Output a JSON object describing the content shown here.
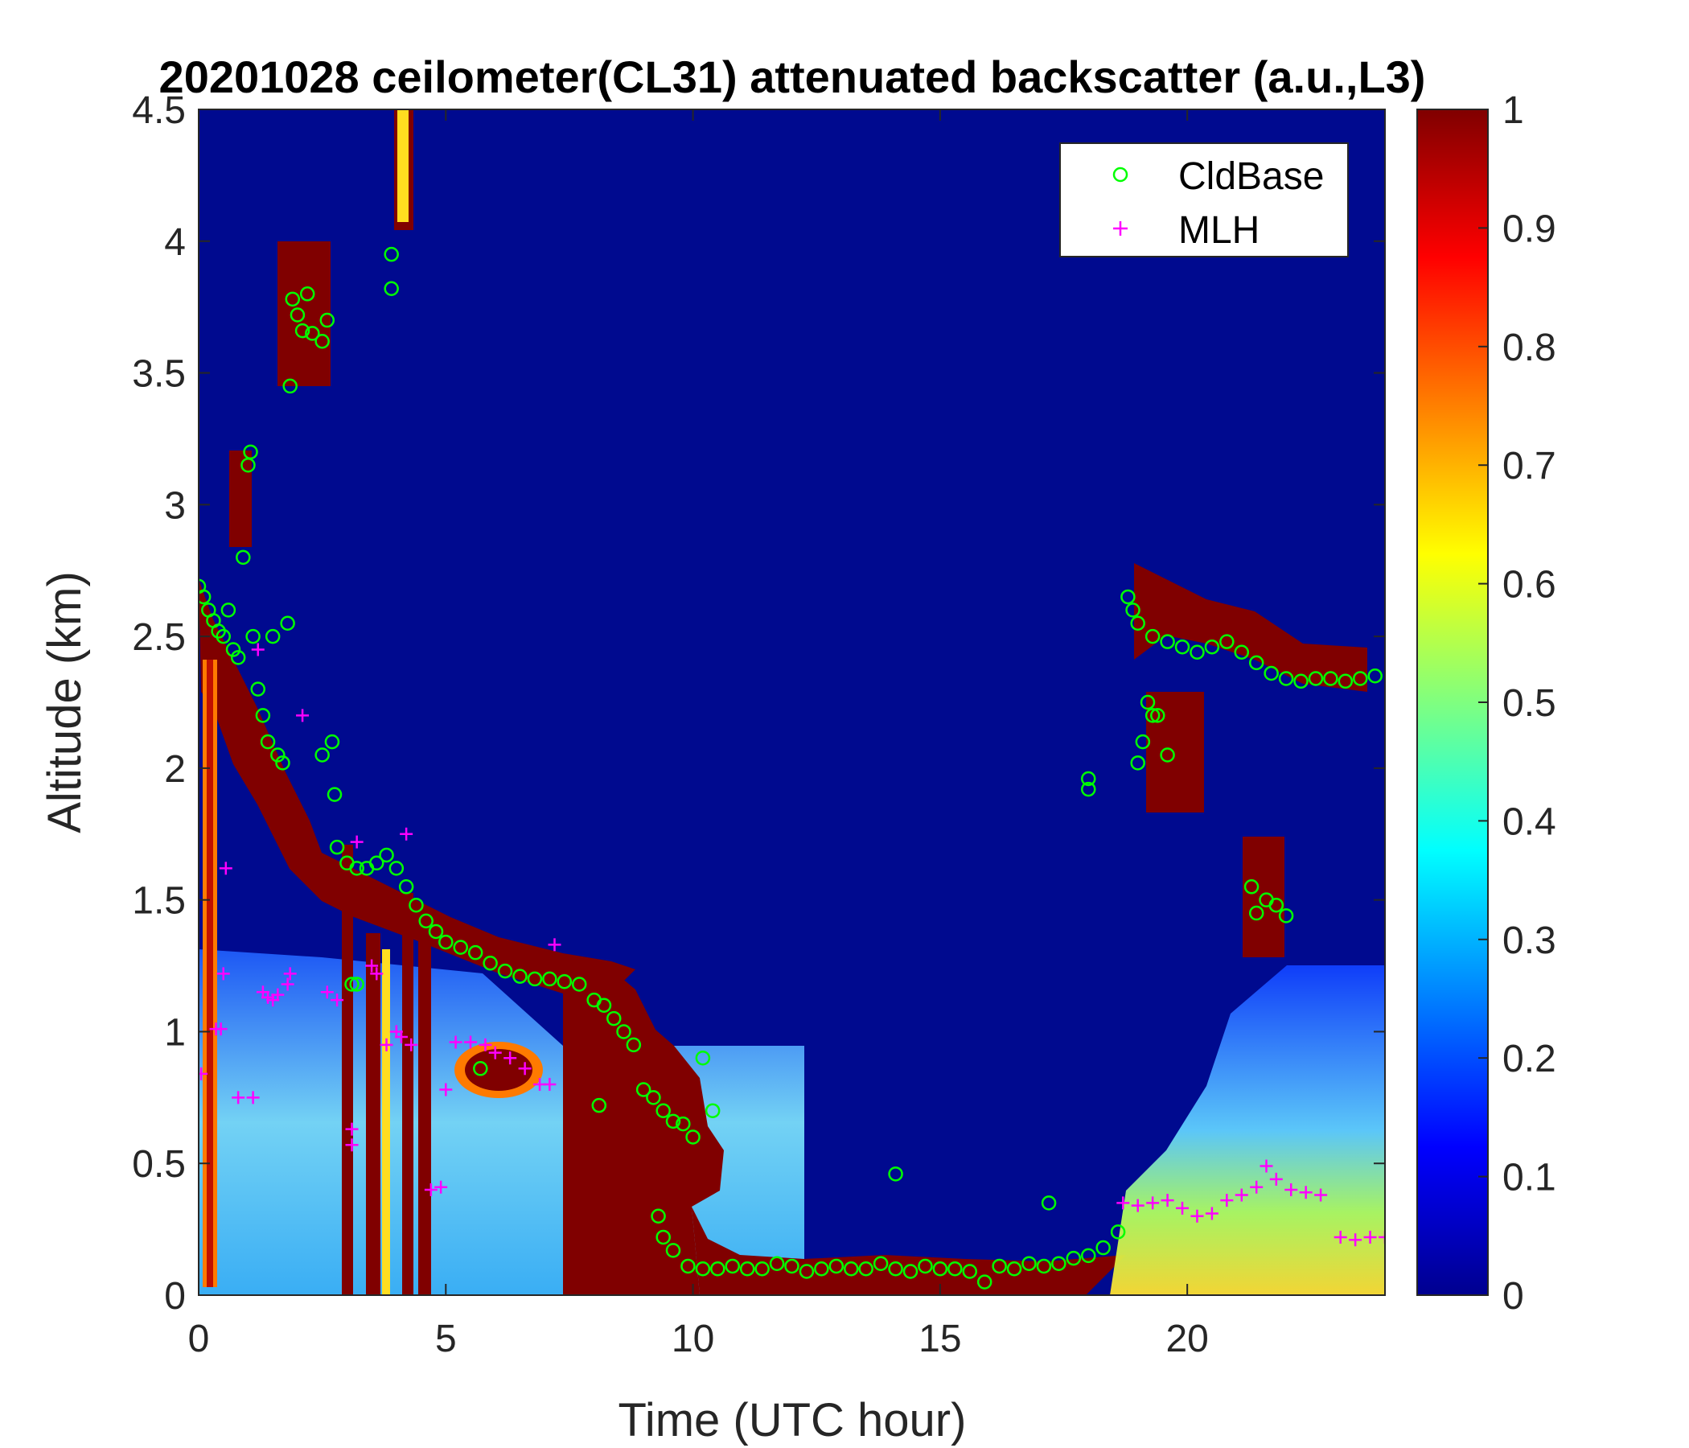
{
  "chart_data": {
    "type": "heatmap",
    "title": "20201028 ceilometer(CL31) attenuated backscatter (a.u.,L3)",
    "xlabel": "Time (UTC hour)",
    "ylabel": "Altitude (km)",
    "xlim": [
      0,
      24
    ],
    "ylim": [
      0,
      4.5
    ],
    "x_ticks": [
      "0",
      "5",
      "10",
      "15",
      "20"
    ],
    "x_tick_values": [
      0,
      5,
      10,
      15,
      20
    ],
    "y_ticks": [
      "0",
      "0.5",
      "1",
      "1.5",
      "2",
      "2.5",
      "3",
      "3.5",
      "4",
      "4.5"
    ],
    "y_tick_values": [
      0,
      0.5,
      1,
      1.5,
      2,
      2.5,
      3,
      3.5,
      4,
      4.5
    ],
    "colorbar": {
      "colormap": "jet",
      "range": [
        0,
        1
      ],
      "ticks": [
        "0",
        "0.1",
        "0.2",
        "0.3",
        "0.4",
        "0.5",
        "0.6",
        "0.7",
        "0.8",
        "0.9",
        "1"
      ],
      "tick_values": [
        0,
        0.1,
        0.2,
        0.3,
        0.4,
        0.5,
        0.6,
        0.7,
        0.8,
        0.9,
        1
      ]
    },
    "background_value": 0.02,
    "legend": {
      "location": "top-right",
      "entries": [
        {
          "label": "CldBase",
          "marker": "circle",
          "color": "#00ff00"
        },
        {
          "label": "MLH",
          "marker": "plus",
          "color": "#ff00ff"
        }
      ]
    },
    "series": [
      {
        "name": "CldBase",
        "marker": "circle",
        "color": "#00ff00",
        "points": [
          [
            0.0,
            2.69
          ],
          [
            0.1,
            2.65
          ],
          [
            0.2,
            2.6
          ],
          [
            0.3,
            2.56
          ],
          [
            0.4,
            2.52
          ],
          [
            0.5,
            2.5
          ],
          [
            0.6,
            2.6
          ],
          [
            0.7,
            2.45
          ],
          [
            0.8,
            2.42
          ],
          [
            0.9,
            2.8
          ],
          [
            1.0,
            3.15
          ],
          [
            1.05,
            3.2
          ],
          [
            1.1,
            2.5
          ],
          [
            1.2,
            2.3
          ],
          [
            1.3,
            2.2
          ],
          [
            1.4,
            2.1
          ],
          [
            1.5,
            2.5
          ],
          [
            1.6,
            2.05
          ],
          [
            1.7,
            2.02
          ],
          [
            1.8,
            2.55
          ],
          [
            1.85,
            3.45
          ],
          [
            1.9,
            3.78
          ],
          [
            2.0,
            3.72
          ],
          [
            2.1,
            3.66
          ],
          [
            2.2,
            3.8
          ],
          [
            2.3,
            3.65
          ],
          [
            2.5,
            3.62
          ],
          [
            2.6,
            3.7
          ],
          [
            2.5,
            2.05
          ],
          [
            2.7,
            2.1
          ],
          [
            2.75,
            1.9
          ],
          [
            2.8,
            1.7
          ],
          [
            3.0,
            1.64
          ],
          [
            3.2,
            1.62
          ],
          [
            3.4,
            1.62
          ],
          [
            3.6,
            1.64
          ],
          [
            3.8,
            1.67
          ],
          [
            4.0,
            1.62
          ],
          [
            4.2,
            1.55
          ],
          [
            4.4,
            1.48
          ],
          [
            4.6,
            1.42
          ],
          [
            4.8,
            1.38
          ],
          [
            5.0,
            1.34
          ],
          [
            5.3,
            1.32
          ],
          [
            5.6,
            1.3
          ],
          [
            5.9,
            1.26
          ],
          [
            6.2,
            1.23
          ],
          [
            6.5,
            1.21
          ],
          [
            6.8,
            1.2
          ],
          [
            7.1,
            1.2
          ],
          [
            7.4,
            1.19
          ],
          [
            7.7,
            1.18
          ],
          [
            8.0,
            1.12
          ],
          [
            8.2,
            1.1
          ],
          [
            8.4,
            1.05
          ],
          [
            8.6,
            1.0
          ],
          [
            8.8,
            0.95
          ],
          [
            9.0,
            0.78
          ],
          [
            9.2,
            0.75
          ],
          [
            9.4,
            0.7
          ],
          [
            9.6,
            0.66
          ],
          [
            9.8,
            0.65
          ],
          [
            10.0,
            0.6
          ],
          [
            10.2,
            0.9
          ],
          [
            10.4,
            0.7
          ],
          [
            3.2,
            1.18
          ],
          [
            3.1,
            1.18
          ],
          [
            5.7,
            0.86
          ],
          [
            8.1,
            0.72
          ],
          [
            9.3,
            0.3
          ],
          [
            9.4,
            0.22
          ],
          [
            9.6,
            0.17
          ],
          [
            9.9,
            0.11
          ],
          [
            10.2,
            0.1
          ],
          [
            10.5,
            0.1
          ],
          [
            10.8,
            0.11
          ],
          [
            11.1,
            0.1
          ],
          [
            11.4,
            0.1
          ],
          [
            11.7,
            0.12
          ],
          [
            12.0,
            0.11
          ],
          [
            12.3,
            0.09
          ],
          [
            12.6,
            0.1
          ],
          [
            12.9,
            0.11
          ],
          [
            13.2,
            0.1
          ],
          [
            13.5,
            0.1
          ],
          [
            13.8,
            0.12
          ],
          [
            14.1,
            0.1
          ],
          [
            14.4,
            0.09
          ],
          [
            14.7,
            0.11
          ],
          [
            15.0,
            0.1
          ],
          [
            15.3,
            0.1
          ],
          [
            15.6,
            0.09
          ],
          [
            15.9,
            0.05
          ],
          [
            16.2,
            0.11
          ],
          [
            16.5,
            0.1
          ],
          [
            16.8,
            0.12
          ],
          [
            17.1,
            0.11
          ],
          [
            17.4,
            0.12
          ],
          [
            17.7,
            0.14
          ],
          [
            18.0,
            0.15
          ],
          [
            18.3,
            0.18
          ],
          [
            18.6,
            0.24
          ],
          [
            17.2,
            0.35
          ],
          [
            14.1,
            0.46
          ],
          [
            3.9,
            3.95
          ],
          [
            3.9,
            3.82
          ],
          [
            18.0,
            1.96
          ],
          [
            18.0,
            1.92
          ],
          [
            18.8,
            2.65
          ],
          [
            18.9,
            2.6
          ],
          [
            19.0,
            2.55
          ],
          [
            19.0,
            2.02
          ],
          [
            19.1,
            2.1
          ],
          [
            19.2,
            2.25
          ],
          [
            19.3,
            2.2
          ],
          [
            19.4,
            2.2
          ],
          [
            19.6,
            2.05
          ],
          [
            19.3,
            2.5
          ],
          [
            19.6,
            2.48
          ],
          [
            19.9,
            2.46
          ],
          [
            20.2,
            2.44
          ],
          [
            20.5,
            2.46
          ],
          [
            20.8,
            2.48
          ],
          [
            21.1,
            2.44
          ],
          [
            21.4,
            2.4
          ],
          [
            21.7,
            2.36
          ],
          [
            22.0,
            2.34
          ],
          [
            22.3,
            2.33
          ],
          [
            22.6,
            2.34
          ],
          [
            22.9,
            2.34
          ],
          [
            23.2,
            2.33
          ],
          [
            23.5,
            2.34
          ],
          [
            23.8,
            2.35
          ],
          [
            21.3,
            1.55
          ],
          [
            21.4,
            1.45
          ],
          [
            21.6,
            1.5
          ],
          [
            21.8,
            1.48
          ],
          [
            22.0,
            1.44
          ]
        ]
      },
      {
        "name": "MLH",
        "marker": "plus",
        "color": "#ff00ff",
        "points": [
          [
            0.05,
            0.84
          ],
          [
            0.35,
            1.01
          ],
          [
            0.45,
            1.01
          ],
          [
            0.5,
            1.22
          ],
          [
            0.55,
            1.62
          ],
          [
            0.8,
            0.75
          ],
          [
            1.1,
            0.75
          ],
          [
            1.2,
            2.45
          ],
          [
            1.3,
            1.15
          ],
          [
            1.4,
            1.13
          ],
          [
            1.5,
            1.12
          ],
          [
            1.6,
            1.14
          ],
          [
            1.8,
            1.18
          ],
          [
            1.85,
            1.22
          ],
          [
            2.1,
            2.2
          ],
          [
            2.6,
            1.15
          ],
          [
            2.8,
            1.12
          ],
          [
            3.1,
            0.63
          ],
          [
            3.1,
            0.57
          ],
          [
            3.2,
            1.72
          ],
          [
            3.5,
            1.25
          ],
          [
            3.6,
            1.22
          ],
          [
            3.8,
            0.95
          ],
          [
            4.0,
            1.0
          ],
          [
            4.1,
            0.98
          ],
          [
            4.3,
            0.95
          ],
          [
            4.2,
            1.75
          ],
          [
            4.7,
            0.4
          ],
          [
            4.9,
            0.41
          ],
          [
            5.0,
            0.78
          ],
          [
            5.2,
            0.96
          ],
          [
            5.5,
            0.96
          ],
          [
            5.8,
            0.95
          ],
          [
            6.0,
            0.92
          ],
          [
            6.3,
            0.9
          ],
          [
            6.6,
            0.86
          ],
          [
            6.9,
            0.8
          ],
          [
            7.1,
            0.8
          ],
          [
            7.2,
            1.33
          ],
          [
            18.7,
            0.35
          ],
          [
            19.0,
            0.34
          ],
          [
            19.3,
            0.35
          ],
          [
            19.6,
            0.36
          ],
          [
            19.9,
            0.33
          ],
          [
            20.2,
            0.3
          ],
          [
            20.5,
            0.31
          ],
          [
            20.8,
            0.36
          ],
          [
            21.1,
            0.38
          ],
          [
            21.4,
            0.41
          ],
          [
            21.6,
            0.49
          ],
          [
            21.8,
            0.44
          ],
          [
            22.1,
            0.4
          ],
          [
            22.4,
            0.39
          ],
          [
            22.7,
            0.38
          ],
          [
            23.1,
            0.22
          ],
          [
            23.4,
            0.21
          ],
          [
            23.7,
            0.22
          ],
          [
            24.0,
            0.22
          ]
        ]
      }
    ]
  }
}
